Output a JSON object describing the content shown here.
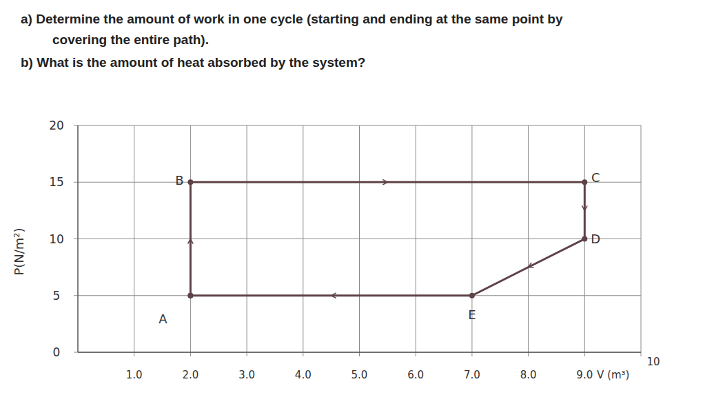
{
  "chart_data": {
    "type": "line",
    "questions": [
      "a) Determine the amount of work in one cycle (starting and ending at the same point by",
      "covering the entire path).",
      "b) What is the amount of heat absorbed by the system?"
    ],
    "x_label": "V (m³)",
    "y_label": "P(N/m²)",
    "x": [
      2,
      2,
      9,
      9,
      7,
      2
    ],
    "series": [
      {
        "values": [
          5,
          15,
          15,
          10,
          5,
          5
        ],
        "color": "#5e4248",
        "marker": "circle",
        "line_style": "solid"
      }
    ],
    "point_labels": [
      "A",
      "B",
      "C",
      "D",
      "E",
      null
    ],
    "xlim": [
      0,
      10
    ],
    "ylim": [
      0,
      20
    ],
    "xticks": [
      {
        "value": 1,
        "label": "1.0"
      },
      {
        "value": 2,
        "label": "2.0"
      },
      {
        "value": 3,
        "label": "3.0"
      },
      {
        "value": 4,
        "label": "4.0"
      },
      {
        "value": 5,
        "label": "5.0"
      },
      {
        "value": 6,
        "label": "6.0"
      },
      {
        "value": 7,
        "label": "7.0"
      },
      {
        "value": 8,
        "label": "8.0"
      },
      {
        "value": 9,
        "label": "9.0"
      },
      10
    ],
    "yticks": [
      0,
      5,
      10,
      15,
      20
    ],
    "grid": true
  }
}
